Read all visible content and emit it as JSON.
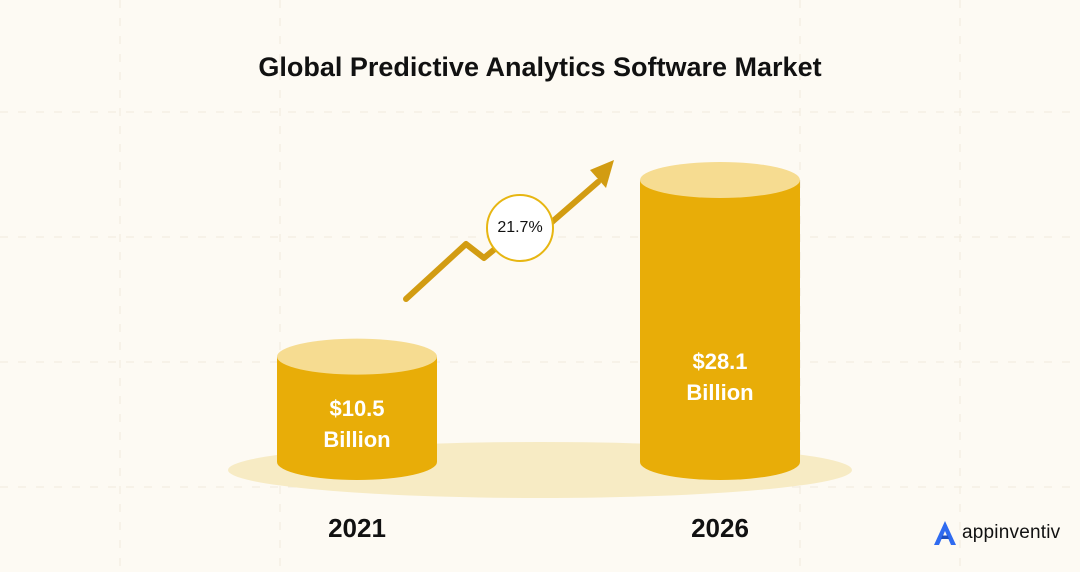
{
  "title": "Global Predictive Analytics Software Market",
  "colors": {
    "background": "#fdfaf3",
    "cylinder_body": "#e8ad08",
    "cylinder_top": "#f6dc91",
    "shadow": "#f7ebc4",
    "arrow": "#d29c12",
    "brand_accent": "#2f6bf0"
  },
  "chart_data": {
    "type": "bar",
    "style": "cylinder",
    "categories": [
      "2021",
      "2026"
    ],
    "values": [
      10.5,
      28.1
    ],
    "value_labels": [
      {
        "amount": "$10.5",
        "unit": "Billion"
      },
      {
        "amount": "$28.1",
        "unit": "Billion"
      }
    ],
    "annotation": "21.7%",
    "title": "Global Predictive Analytics Software Market",
    "xlabel": "",
    "ylabel": "",
    "grid": false,
    "legend": "none"
  },
  "brand": {
    "name": "appinventiv",
    "icon": "appinventiv-logo-icon"
  }
}
